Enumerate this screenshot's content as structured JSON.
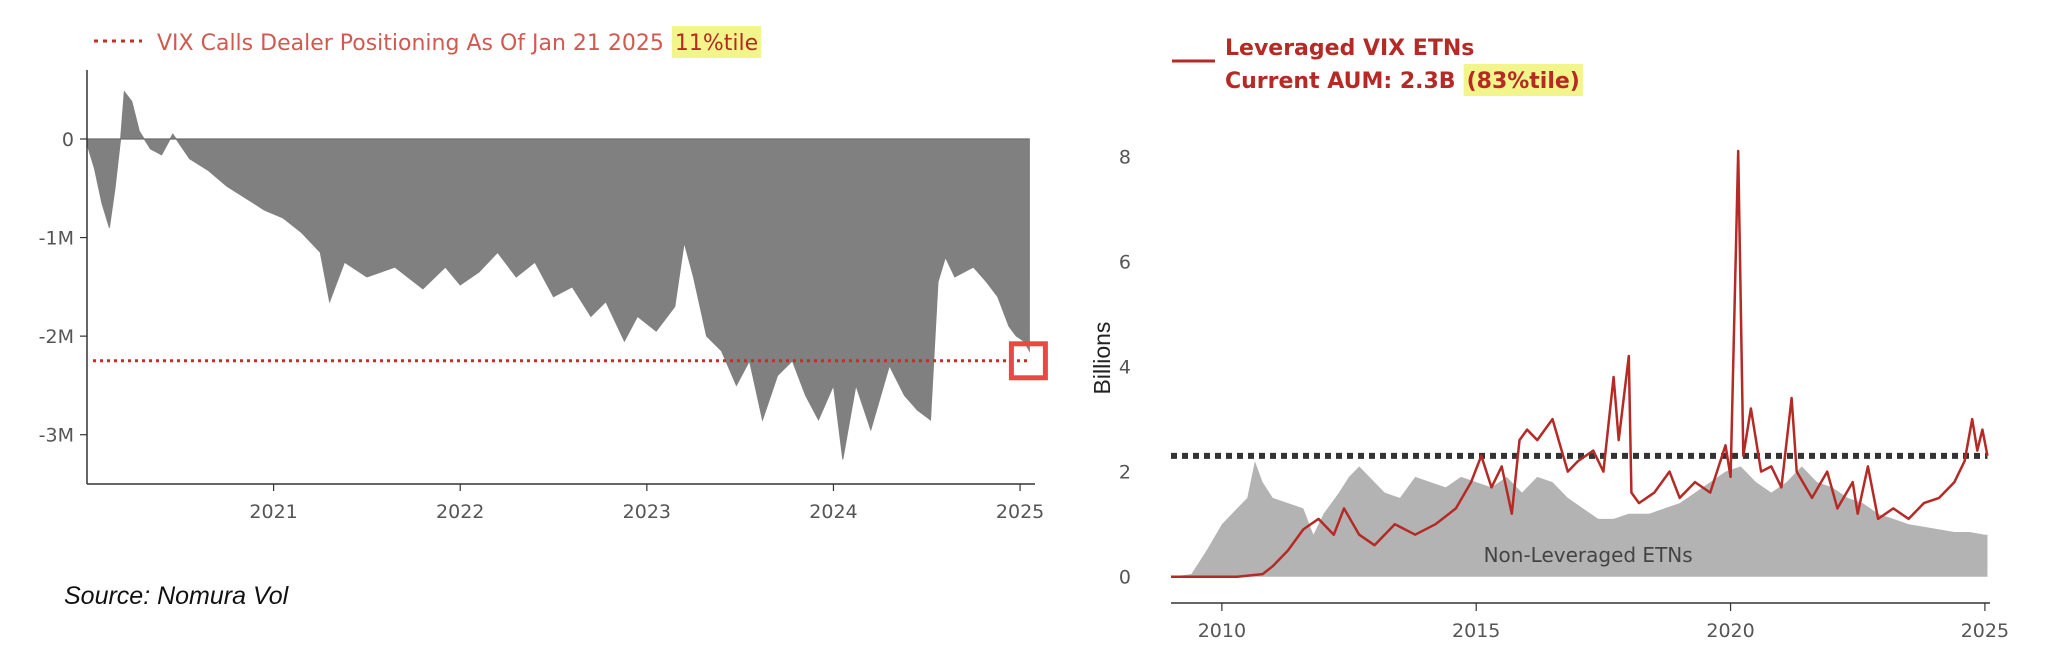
{
  "chart_data": [
    {
      "type": "area",
      "legend_label": "VIX Calls Dealer Positioning As Of Jan 21 2025",
      "legend_highlight": "11%tile",
      "y_ticks": [
        "0",
        "-1M",
        "-2M",
        "-3M"
      ],
      "y_tick_values": [
        0,
        -1000000,
        -2000000,
        -3000000
      ],
      "x_ticks": [
        "2021",
        "2022",
        "2023",
        "2024",
        "2025"
      ],
      "x_tick_values": [
        2021,
        2022,
        2023,
        2024,
        2025
      ],
      "xlim": [
        2020.0,
        2025.08
      ],
      "ylim": [
        -3500000,
        700000
      ],
      "reference_line_value": -2250000,
      "area_color": "#808080",
      "reference_line_color": "#c0302a",
      "marker_color": "#e84a43",
      "series": [
        {
          "values": [
            [
              2020.0,
              -50000
            ],
            [
              2020.04,
              -300000
            ],
            [
              2020.08,
              -650000
            ],
            [
              2020.12,
              -900000
            ],
            [
              2020.15,
              -500000
            ],
            [
              2020.18,
              0
            ],
            [
              2020.2,
              480000
            ],
            [
              2020.24,
              380000
            ],
            [
              2020.28,
              80000
            ],
            [
              2020.34,
              -100000
            ],
            [
              2020.4,
              -160000
            ],
            [
              2020.46,
              50000
            ],
            [
              2020.55,
              -200000
            ],
            [
              2020.65,
              -320000
            ],
            [
              2020.75,
              -480000
            ],
            [
              2020.85,
              -600000
            ],
            [
              2020.95,
              -720000
            ],
            [
              2021.05,
              -800000
            ],
            [
              2021.15,
              -950000
            ],
            [
              2021.25,
              -1150000
            ],
            [
              2021.3,
              -1650000
            ],
            [
              2021.38,
              -1250000
            ],
            [
              2021.5,
              -1400000
            ],
            [
              2021.65,
              -1300000
            ],
            [
              2021.8,
              -1520000
            ],
            [
              2021.92,
              -1300000
            ],
            [
              2022.0,
              -1480000
            ],
            [
              2022.1,
              -1350000
            ],
            [
              2022.2,
              -1150000
            ],
            [
              2022.3,
              -1400000
            ],
            [
              2022.4,
              -1250000
            ],
            [
              2022.5,
              -1600000
            ],
            [
              2022.6,
              -1500000
            ],
            [
              2022.7,
              -1800000
            ],
            [
              2022.78,
              -1650000
            ],
            [
              2022.88,
              -2050000
            ],
            [
              2022.95,
              -1800000
            ],
            [
              2023.05,
              -1950000
            ],
            [
              2023.15,
              -1700000
            ],
            [
              2023.2,
              -1050000
            ],
            [
              2023.25,
              -1400000
            ],
            [
              2023.32,
              -2000000
            ],
            [
              2023.4,
              -2150000
            ],
            [
              2023.48,
              -2500000
            ],
            [
              2023.55,
              -2250000
            ],
            [
              2023.62,
              -2850000
            ],
            [
              2023.7,
              -2400000
            ],
            [
              2023.78,
              -2250000
            ],
            [
              2023.85,
              -2600000
            ],
            [
              2023.92,
              -2850000
            ],
            [
              2024.0,
              -2500000
            ],
            [
              2024.05,
              -3250000
            ],
            [
              2024.12,
              -2500000
            ],
            [
              2024.2,
              -2950000
            ],
            [
              2024.3,
              -2300000
            ],
            [
              2024.38,
              -2600000
            ],
            [
              2024.45,
              -2750000
            ],
            [
              2024.52,
              -2850000
            ],
            [
              2024.56,
              -1450000
            ],
            [
              2024.6,
              -1200000
            ],
            [
              2024.65,
              -1400000
            ],
            [
              2024.75,
              -1300000
            ],
            [
              2024.82,
              -1450000
            ],
            [
              2024.88,
              -1600000
            ],
            [
              2024.94,
              -1900000
            ],
            [
              2024.98,
              -2000000
            ],
            [
              2025.02,
              -2050000
            ],
            [
              2025.05,
              -2150000
            ]
          ]
        }
      ]
    },
    {
      "type": "line",
      "legend_label_line1": "Leveraged VIX ETNs",
      "legend_label_line2": "Current AUM: 2.3B",
      "legend_highlight": "(83%tile)",
      "ylabel": "Billions",
      "y_ticks": [
        "0",
        "2",
        "4",
        "6",
        "8"
      ],
      "y_tick_values": [
        0,
        2,
        4,
        6,
        8
      ],
      "x_ticks": [
        "2010",
        "2015",
        "2020",
        "2025"
      ],
      "x_tick_values": [
        2010,
        2015,
        2020,
        2025
      ],
      "xlim": [
        2009.0,
        2025.1
      ],
      "ylim": [
        -0.5,
        8.5
      ],
      "reference_line_value": 2.3,
      "area_annotation": "Non-Leveraged ETNs",
      "line_color": "#b52a25",
      "area_color": "#b3b3b3",
      "reference_line_color": "#333333",
      "series": [
        {
          "name": "Leveraged VIX ETNs",
          "values": [
            [
              2009.0,
              0.0
            ],
            [
              2010.3,
              0.0
            ],
            [
              2010.8,
              0.05
            ],
            [
              2011.0,
              0.2
            ],
            [
              2011.3,
              0.5
            ],
            [
              2011.6,
              0.9
            ],
            [
              2011.9,
              1.1
            ],
            [
              2012.2,
              0.8
            ],
            [
              2012.4,
              1.3
            ],
            [
              2012.7,
              0.8
            ],
            [
              2013.0,
              0.6
            ],
            [
              2013.4,
              1.0
            ],
            [
              2013.8,
              0.8
            ],
            [
              2014.2,
              1.0
            ],
            [
              2014.6,
              1.3
            ],
            [
              2014.9,
              1.8
            ],
            [
              2015.1,
              2.3
            ],
            [
              2015.3,
              1.7
            ],
            [
              2015.5,
              2.1
            ],
            [
              2015.7,
              1.2
            ],
            [
              2015.85,
              2.6
            ],
            [
              2016.0,
              2.8
            ],
            [
              2016.2,
              2.6
            ],
            [
              2016.5,
              3.0
            ],
            [
              2016.8,
              2.0
            ],
            [
              2017.0,
              2.2
            ],
            [
              2017.3,
              2.4
            ],
            [
              2017.5,
              2.0
            ],
            [
              2017.7,
              3.8
            ],
            [
              2017.8,
              2.6
            ],
            [
              2018.0,
              4.2
            ],
            [
              2018.05,
              1.6
            ],
            [
              2018.2,
              1.4
            ],
            [
              2018.5,
              1.6
            ],
            [
              2018.8,
              2.0
            ],
            [
              2019.0,
              1.5
            ],
            [
              2019.3,
              1.8
            ],
            [
              2019.6,
              1.6
            ],
            [
              2019.9,
              2.5
            ],
            [
              2020.0,
              1.9
            ],
            [
              2020.15,
              8.1
            ],
            [
              2020.25,
              2.3
            ],
            [
              2020.4,
              3.2
            ],
            [
              2020.6,
              2.0
            ],
            [
              2020.8,
              2.1
            ],
            [
              2021.0,
              1.7
            ],
            [
              2021.2,
              3.4
            ],
            [
              2021.3,
              2.0
            ],
            [
              2021.6,
              1.5
            ],
            [
              2021.9,
              2.0
            ],
            [
              2022.1,
              1.3
            ],
            [
              2022.4,
              1.8
            ],
            [
              2022.5,
              1.2
            ],
            [
              2022.7,
              2.1
            ],
            [
              2022.9,
              1.1
            ],
            [
              2023.2,
              1.3
            ],
            [
              2023.5,
              1.1
            ],
            [
              2023.8,
              1.4
            ],
            [
              2024.1,
              1.5
            ],
            [
              2024.4,
              1.8
            ],
            [
              2024.6,
              2.2
            ],
            [
              2024.75,
              3.0
            ],
            [
              2024.85,
              2.4
            ],
            [
              2024.95,
              2.8
            ],
            [
              2025.05,
              2.3
            ]
          ]
        },
        {
          "name": "Non-Leveraged ETNs",
          "values": [
            [
              2009.0,
              0.0
            ],
            [
              2009.4,
              0.05
            ],
            [
              2009.7,
              0.5
            ],
            [
              2010.0,
              1.0
            ],
            [
              2010.3,
              1.3
            ],
            [
              2010.5,
              1.5
            ],
            [
              2010.65,
              2.2
            ],
            [
              2010.8,
              1.8
            ],
            [
              2011.0,
              1.5
            ],
            [
              2011.3,
              1.4
            ],
            [
              2011.6,
              1.3
            ],
            [
              2011.8,
              0.8
            ],
            [
              2012.0,
              1.2
            ],
            [
              2012.3,
              1.6
            ],
            [
              2012.5,
              1.9
            ],
            [
              2012.7,
              2.1
            ],
            [
              2012.9,
              1.9
            ],
            [
              2013.2,
              1.6
            ],
            [
              2013.5,
              1.5
            ],
            [
              2013.8,
              1.9
            ],
            [
              2014.1,
              1.8
            ],
            [
              2014.4,
              1.7
            ],
            [
              2014.7,
              1.9
            ],
            [
              2015.0,
              1.8
            ],
            [
              2015.3,
              1.7
            ],
            [
              2015.6,
              1.9
            ],
            [
              2015.9,
              1.6
            ],
            [
              2016.2,
              1.9
            ],
            [
              2016.5,
              1.8
            ],
            [
              2016.8,
              1.5
            ],
            [
              2017.1,
              1.3
            ],
            [
              2017.4,
              1.1
            ],
            [
              2017.7,
              1.1
            ],
            [
              2018.0,
              1.2
            ],
            [
              2018.4,
              1.2
            ],
            [
              2018.7,
              1.3
            ],
            [
              2019.0,
              1.4
            ],
            [
              2019.3,
              1.6
            ],
            [
              2019.6,
              1.8
            ],
            [
              2019.9,
              2.0
            ],
            [
              2020.2,
              2.1
            ],
            [
              2020.5,
              1.8
            ],
            [
              2020.8,
              1.6
            ],
            [
              2021.1,
              1.8
            ],
            [
              2021.4,
              2.1
            ],
            [
              2021.7,
              1.8
            ],
            [
              2022.0,
              1.7
            ],
            [
              2022.3,
              1.5
            ],
            [
              2022.6,
              1.4
            ],
            [
              2022.9,
              1.2
            ],
            [
              2023.2,
              1.1
            ],
            [
              2023.5,
              1.0
            ],
            [
              2023.8,
              0.95
            ],
            [
              2024.1,
              0.9
            ],
            [
              2024.4,
              0.85
            ],
            [
              2024.7,
              0.85
            ],
            [
              2025.0,
              0.8
            ],
            [
              2025.05,
              0.8
            ]
          ]
        }
      ]
    }
  ],
  "source": "Source: Nomura Vol"
}
